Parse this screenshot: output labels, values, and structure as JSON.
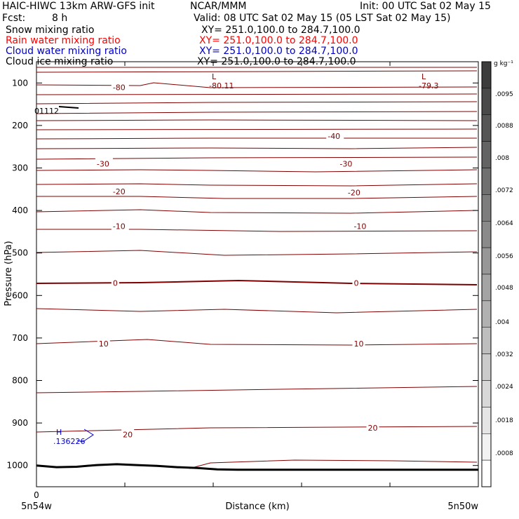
{
  "header": {
    "model": "HAIC-HIWC 13km ARW-GFS init",
    "org": "NCAR/MMM",
    "init": "Init: 00 UTC Sat 02 May 15",
    "fcst_label": "Fcst:",
    "fcst_value": "8 h",
    "valid": "Valid: 08 UTC Sat 02 May 15 (05 LST Sat 02 May 15)"
  },
  "fields": [
    {
      "name": "Snow mixing ratio",
      "xy": "XY= 251.0,100.0 to 284.7,100.0",
      "color": "#000000"
    },
    {
      "name": "Rain water mixing ratio",
      "xy": "XY= 251.0,100.0 to 284.7,100.0",
      "color": "#ff0000"
    },
    {
      "name": "Cloud water mixing ratio",
      "xy": "XY= 251.0,100.0 to 284.7,100.0",
      "color": "#0000cc"
    },
    {
      "name": "Cloud ice mixing ratio",
      "xy": "XY= 251.0,100.0 to 284.7,100.0",
      "color": "#000000"
    }
  ],
  "chart_data": {
    "type": "contour-cross-section",
    "ylabel": "Pressure (hPa)",
    "xlabel": "Distance (km)",
    "yticks": [
      100,
      200,
      300,
      400,
      500,
      600,
      700,
      800,
      900,
      1000
    ],
    "ylim": [
      1050,
      50
    ],
    "xlim": [
      0,
      440
    ],
    "xticks": [
      0,
      88,
      176,
      264,
      352
    ],
    "x_tick_labels": [
      "0"
    ],
    "x_left_label": "5n54w",
    "x_right_label": "5n50w",
    "colorbar": {
      "unit": "g kg⁻¹",
      "labels": [
        ".0095",
        ".0088",
        ".008",
        ".0072",
        ".0064",
        ".0056",
        ".0048",
        ".004",
        ".0032",
        ".0024",
        ".0018",
        ".0008"
      ]
    },
    "temperature_contours": {
      "interval_c": 5,
      "color": "#800000",
      "labels": [
        {
          "text": "-80",
          "x": 76,
          "p": 110
        },
        {
          "text": "-40",
          "x": 290,
          "p": 225
        },
        {
          "text": "-30",
          "x": 60,
          "p": 290
        },
        {
          "text": "-30",
          "x": 302,
          "p": 290
        },
        {
          "text": "-20",
          "x": 76,
          "p": 355
        },
        {
          "text": "-20",
          "x": 310,
          "p": 358
        },
        {
          "text": "-10",
          "x": 76,
          "p": 437
        },
        {
          "text": "-10",
          "x": 316,
          "p": 437
        },
        {
          "text": "0",
          "x": 76,
          "p": 571
        },
        {
          "text": "0",
          "x": 316,
          "p": 571
        },
        {
          "text": "10",
          "x": 62,
          "p": 713
        },
        {
          "text": "10",
          "x": 316,
          "p": 713
        },
        {
          "text": "20",
          "x": 86,
          "p": 927
        },
        {
          "text": "20",
          "x": 330,
          "p": 911
        }
      ]
    },
    "extrema": [
      {
        "symbol": "L",
        "value": "-80.11",
        "x": 160,
        "color": "#800000"
      },
      {
        "symbol": "L",
        "value": "-79.3",
        "x": 345,
        "color": "#800000"
      },
      {
        "symbol": "H",
        "value": ".136226",
        "x": 20,
        "color": "#0000cc"
      },
      {
        "symbol": "",
        "value": "01112",
        "x": 2,
        "color": "#000000"
      }
    ],
    "terrain_p": [
      1000,
      1004,
      1003,
      999,
      997,
      999,
      1001,
      1004,
      1006,
      1009,
      1010,
      1010,
      1010,
      1010,
      1010,
      1010,
      1010,
      1010,
      1010,
      1010,
      1010,
      1010,
      1010
    ]
  }
}
